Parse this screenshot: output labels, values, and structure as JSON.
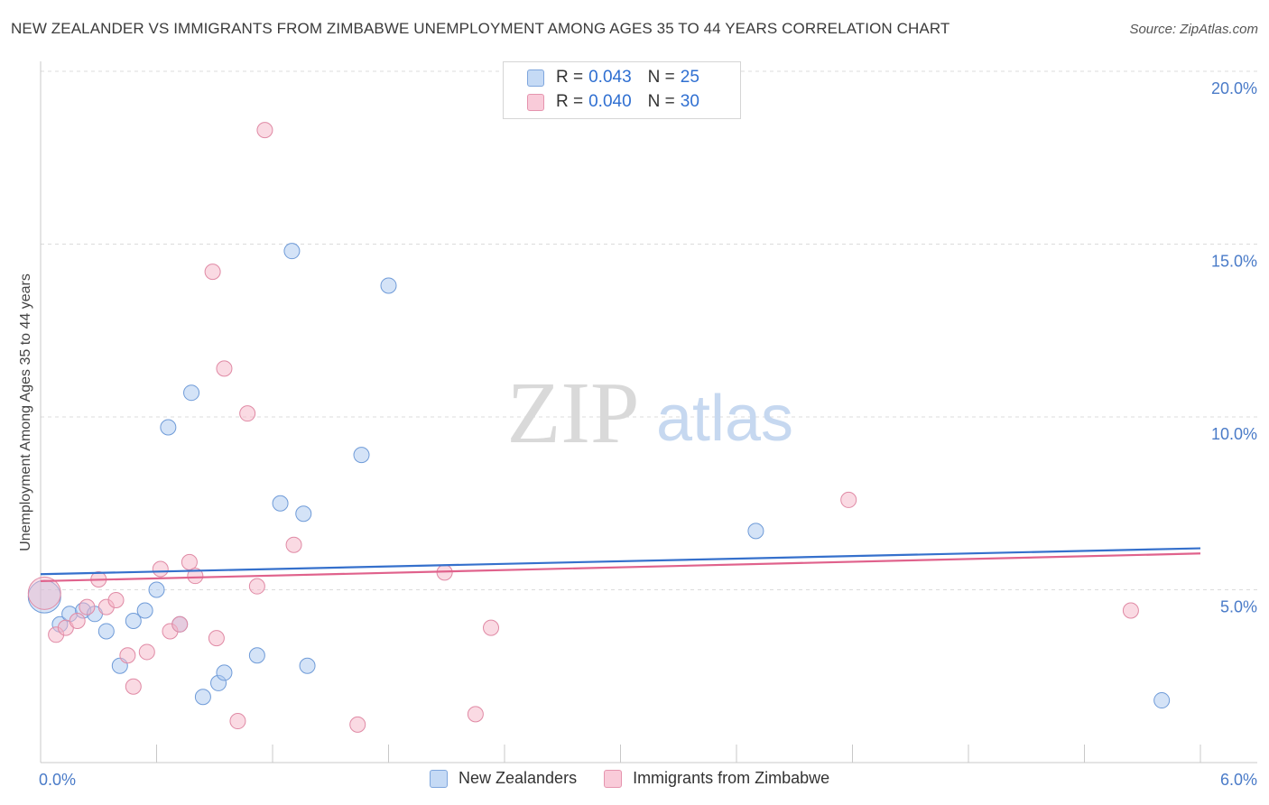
{
  "title": "NEW ZEALANDER VS IMMIGRANTS FROM ZIMBABWE UNEMPLOYMENT AMONG AGES 35 TO 44 YEARS CORRELATION CHART",
  "source": "Source: ZipAtlas.com",
  "watermark": {
    "zip": "ZIP",
    "atlas": "atlas"
  },
  "legend": {
    "rows": [
      {
        "r_label": "R =",
        "r_value": "0.043",
        "n_label": "N =",
        "n_value": "25"
      },
      {
        "r_label": "R =",
        "r_value": "0.040",
        "n_label": "N =",
        "n_value": "30"
      }
    ]
  },
  "colors": {
    "blue_fill": "#a9c8f0",
    "blue_stroke": "#6f9bd8",
    "blue_line": "#3570cc",
    "pink_fill": "#f5b5c8",
    "pink_stroke": "#e08aa5",
    "pink_line": "#e0628c",
    "grid": "#dcdcdc",
    "tick_text": "#4a7bc8"
  },
  "chart_data": {
    "type": "scatter",
    "title": "NEW ZEALANDER VS IMMIGRANTS FROM ZIMBABWE UNEMPLOYMENT AMONG AGES 35 TO 44 YEARS CORRELATION CHART",
    "xlabel": "",
    "ylabel": "Unemployment Among Ages 35 to 44 years",
    "xlim": [
      0,
      6
    ],
    "ylim": [
      0,
      20
    ],
    "x_tick_labels": [
      "0.0%",
      "6.0%"
    ],
    "y_ticks": [
      {
        "value": 5,
        "label": "5.0%"
      },
      {
        "value": 10,
        "label": "10.0%"
      },
      {
        "value": 15,
        "label": "15.0%"
      },
      {
        "value": 20,
        "label": "20.0%"
      }
    ],
    "series": [
      {
        "name": "New Zealanders",
        "color": "blue",
        "trend": {
          "x": [
            0,
            6
          ],
          "y": [
            5.45,
            6.2
          ]
        },
        "points": [
          {
            "x": 0.02,
            "y": 4.8,
            "big": true
          },
          {
            "x": 0.1,
            "y": 4.0
          },
          {
            "x": 0.15,
            "y": 4.3
          },
          {
            "x": 0.22,
            "y": 4.4
          },
          {
            "x": 0.28,
            "y": 4.3
          },
          {
            "x": 0.34,
            "y": 3.8
          },
          {
            "x": 0.41,
            "y": 2.8
          },
          {
            "x": 0.48,
            "y": 4.1
          },
          {
            "x": 0.54,
            "y": 4.4
          },
          {
            "x": 0.6,
            "y": 5.0
          },
          {
            "x": 0.66,
            "y": 9.7
          },
          {
            "x": 0.72,
            "y": 4.0
          },
          {
            "x": 0.78,
            "y": 10.7
          },
          {
            "x": 0.84,
            "y": 1.9
          },
          {
            "x": 0.92,
            "y": 2.3
          },
          {
            "x": 0.95,
            "y": 2.6
          },
          {
            "x": 1.12,
            "y": 3.1
          },
          {
            "x": 1.24,
            "y": 7.5
          },
          {
            "x": 1.3,
            "y": 14.8
          },
          {
            "x": 1.36,
            "y": 7.2
          },
          {
            "x": 1.38,
            "y": 2.8
          },
          {
            "x": 1.66,
            "y": 8.9
          },
          {
            "x": 1.8,
            "y": 13.8
          },
          {
            "x": 3.7,
            "y": 6.7
          },
          {
            "x": 5.8,
            "y": 1.8
          }
        ]
      },
      {
        "name": "Immigrants from Zimbabwe",
        "color": "pink",
        "trend": {
          "x": [
            0,
            6
          ],
          "y": [
            5.25,
            6.05
          ]
        },
        "points": [
          {
            "x": 0.02,
            "y": 4.9,
            "big": true
          },
          {
            "x": 0.08,
            "y": 3.7
          },
          {
            "x": 0.13,
            "y": 3.9
          },
          {
            "x": 0.19,
            "y": 4.1
          },
          {
            "x": 0.24,
            "y": 4.5
          },
          {
            "x": 0.3,
            "y": 5.3
          },
          {
            "x": 0.34,
            "y": 4.5
          },
          {
            "x": 0.39,
            "y": 4.7
          },
          {
            "x": 0.45,
            "y": 3.1
          },
          {
            "x": 0.48,
            "y": 2.2
          },
          {
            "x": 0.55,
            "y": 3.2
          },
          {
            "x": 0.62,
            "y": 5.6
          },
          {
            "x": 0.67,
            "y": 3.8
          },
          {
            "x": 0.72,
            "y": 4.0
          },
          {
            "x": 0.77,
            "y": 5.8
          },
          {
            "x": 0.8,
            "y": 5.4
          },
          {
            "x": 0.89,
            "y": 14.2
          },
          {
            "x": 0.91,
            "y": 3.6
          },
          {
            "x": 0.95,
            "y": 11.4
          },
          {
            "x": 1.02,
            "y": 1.2
          },
          {
            "x": 1.07,
            "y": 10.1
          },
          {
            "x": 1.12,
            "y": 5.1
          },
          {
            "x": 1.16,
            "y": 18.3
          },
          {
            "x": 1.31,
            "y": 6.3
          },
          {
            "x": 1.64,
            "y": 1.1
          },
          {
            "x": 2.09,
            "y": 5.5
          },
          {
            "x": 2.25,
            "y": 1.4
          },
          {
            "x": 2.33,
            "y": 3.9
          },
          {
            "x": 4.18,
            "y": 7.6
          },
          {
            "x": 5.64,
            "y": 4.4
          }
        ]
      }
    ]
  },
  "bottom_legend": {
    "items": [
      {
        "label": "New Zealanders"
      },
      {
        "label": "Immigrants from Zimbabwe"
      }
    ]
  }
}
